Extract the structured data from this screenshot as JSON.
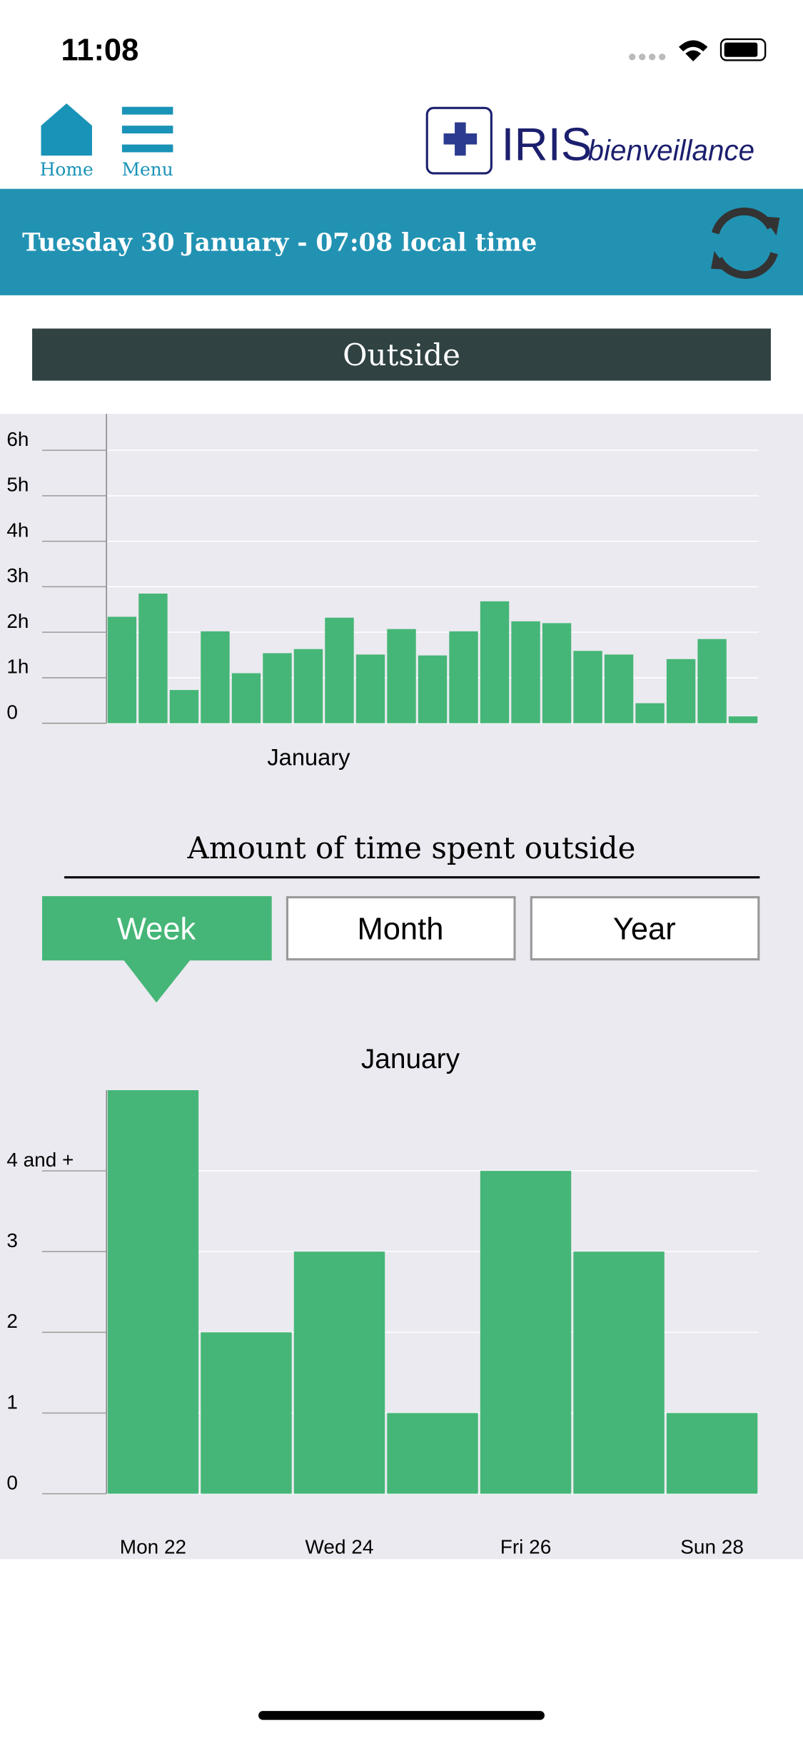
{
  "status_bar": {
    "time": "11:08"
  },
  "nav": {
    "home": "Home",
    "menu": "Menu",
    "logo_main": "IRIS",
    "logo_sub": "bienveillance"
  },
  "banner": {
    "date": "Tuesday 30 January - 07:08 local time"
  },
  "section": {
    "title": "Outside"
  },
  "tabs": {
    "title": "Amount of time spent outside",
    "options": [
      "Week",
      "Month",
      "Year"
    ],
    "selected": 0
  },
  "chart_data": [
    {
      "type": "bar",
      "x_label": "January",
      "color": "#45b677",
      "values": [
        2.34,
        2.85,
        0.73,
        2.02,
        1.1,
        1.54,
        1.63,
        2.32,
        1.51,
        2.07,
        1.49,
        2.02,
        2.68,
        2.24,
        2.2,
        1.59,
        1.51,
        0.44,
        1.41,
        1.85,
        0.15
      ],
      "ylim": [
        0,
        6.8
      ],
      "yticks": [
        0,
        {
          "value": 1,
          "label": "1h"
        },
        {
          "value": 2,
          "label": "2h"
        },
        {
          "value": 3,
          "label": "3h"
        },
        {
          "value": 4,
          "label": "4h"
        },
        {
          "value": 5,
          "label": "5h"
        },
        {
          "value": 6,
          "label": "6h"
        }
      ]
    },
    {
      "type": "bar",
      "title": "January",
      "color": "#45b677",
      "categories": [
        "Mon 22",
        null,
        "Wed 24",
        null,
        "Fri 26",
        null,
        "Sun 28"
      ],
      "values": [
        5,
        2,
        3,
        1,
        4,
        3,
        1
      ],
      "ylim": [
        0,
        5
      ],
      "yticks": [
        0,
        1,
        2,
        3,
        {
          "value": 4,
          "label": "4 and +"
        }
      ]
    }
  ]
}
